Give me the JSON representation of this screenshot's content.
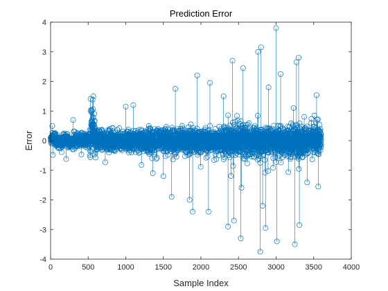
{
  "chart_data": {
    "type": "stem",
    "title": "Prediction Error",
    "xlabel": "Sample Index",
    "ylabel": "Error",
    "xlim": [
      0,
      4000
    ],
    "ylim": [
      -4,
      4
    ],
    "xticks": [
      0,
      500,
      1000,
      1500,
      2000,
      2500,
      3000,
      3500,
      4000
    ],
    "yticks": [
      -4,
      -3,
      -2,
      -1,
      0,
      1,
      2,
      3,
      4
    ],
    "xtick_labels": [
      "0",
      "500",
      "1000",
      "1500",
      "2000",
      "2500",
      "3000",
      "3500",
      "4000"
    ],
    "ytick_labels": [
      "-4",
      "-3",
      "-2",
      "-1",
      "0",
      "1",
      "2",
      "3",
      "4"
    ],
    "grid": false,
    "legend": "none",
    "marker": "open-circle",
    "series_color": "#0072BD",
    "axis_color": "#262626",
    "n_points": 3600,
    "highlighted_values": [
      {
        "x": 560,
        "y": 1.38
      },
      {
        "x": 1000,
        "y": 1.15
      },
      {
        "x": 1100,
        "y": 1.2
      },
      {
        "x": 1210,
        "y": -0.82
      },
      {
        "x": 1360,
        "y": -1.1
      },
      {
        "x": 1500,
        "y": -1.2
      },
      {
        "x": 1610,
        "y": -1.9
      },
      {
        "x": 1660,
        "y": 1.75
      },
      {
        "x": 1850,
        "y": -2.0
      },
      {
        "x": 1890,
        "y": -2.4
      },
      {
        "x": 1950,
        "y": 2.2
      },
      {
        "x": 2100,
        "y": -2.4
      },
      {
        "x": 2120,
        "y": 1.95
      },
      {
        "x": 2360,
        "y": -2.9
      },
      {
        "x": 2420,
        "y": 2.7
      },
      {
        "x": 2440,
        "y": -2.7
      },
      {
        "x": 2530,
        "y": -3.3
      },
      {
        "x": 2560,
        "y": 2.45
      },
      {
        "x": 2760,
        "y": 3.0
      },
      {
        "x": 2790,
        "y": -3.75
      },
      {
        "x": 2800,
        "y": 3.15
      },
      {
        "x": 2820,
        "y": -2.2
      },
      {
        "x": 2860,
        "y": -2.95
      },
      {
        "x": 2900,
        "y": 1.8
      },
      {
        "x": 3000,
        "y": 3.8
      },
      {
        "x": 3010,
        "y": -3.4
      },
      {
        "x": 3060,
        "y": 2.25
      },
      {
        "x": 3250,
        "y": -3.5
      },
      {
        "x": 3270,
        "y": 2.65
      },
      {
        "x": 3300,
        "y": 2.8
      },
      {
        "x": 3310,
        "y": -2.85
      },
      {
        "x": 3560,
        "y": -1.55
      }
    ]
  }
}
